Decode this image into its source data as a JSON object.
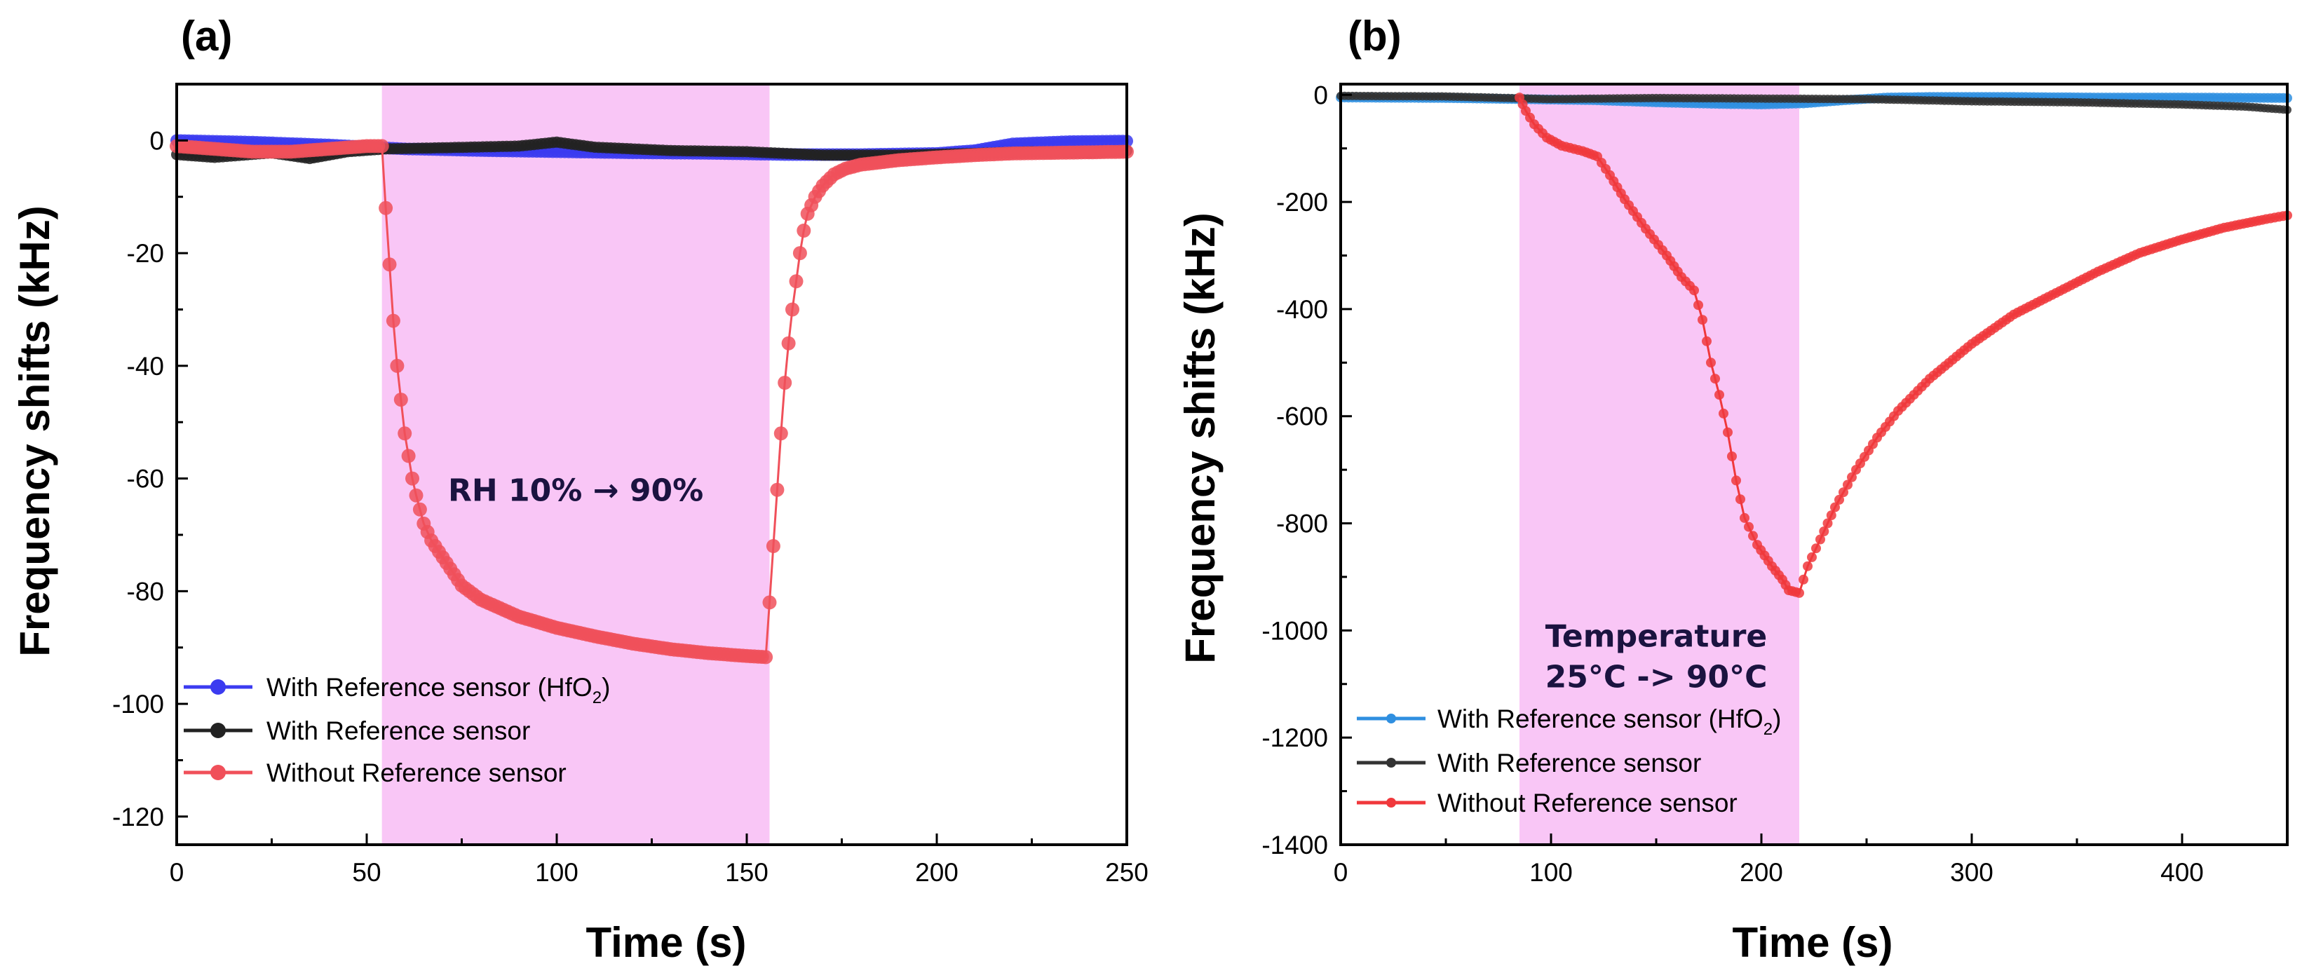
{
  "chart_data": [
    {
      "type": "scatter",
      "panel_label": "(a)",
      "xlabel": "Time (s)",
      "ylabel": "Frequency shifts (kHz)",
      "xlim": [
        0,
        250
      ],
      "ylim": [
        -125,
        10
      ],
      "xticks": [
        0,
        50,
        100,
        150,
        200,
        250
      ],
      "xtick_labels": [
        "0",
        "50",
        "100",
        "150",
        "200",
        "250"
      ],
      "yticks": [
        0,
        -20,
        -40,
        -60,
        -80,
        -100,
        -120
      ],
      "ytick_labels": [
        "0",
        "-20",
        "-40",
        "-60",
        "-80",
        "-100",
        "-120"
      ],
      "highlight_region": {
        "x": [
          54,
          156
        ],
        "color": "#f9c6f6"
      },
      "annotation": {
        "lines": [
          "RH 10% → 90%"
        ],
        "x": 105,
        "y": -64
      },
      "legend_position": "bottom-left",
      "legend_label_main": "With Reference sensor (HfO",
      "legend_label_sub": "2",
      "legend_label_close": ")",
      "series": [
        {
          "name": "With Reference sensor (HfO2)",
          "color": "#3b3bf0",
          "marker_size": 9,
          "points": [
            [
              0,
              0
            ],
            [
              20,
              -0.3
            ],
            [
              40,
              -0.8
            ],
            [
              60,
              -1.5
            ],
            [
              80,
              -1.8
            ],
            [
              100,
              -2
            ],
            [
              120,
              -2.2
            ],
            [
              140,
              -2.3
            ],
            [
              160,
              -2.5
            ],
            [
              180,
              -2.5
            ],
            [
              200,
              -2.3
            ],
            [
              210,
              -1.8
            ],
            [
              220,
              -0.6
            ],
            [
              235,
              -0.2
            ],
            [
              250,
              -0.1
            ]
          ]
        },
        {
          "name": "With Reference sensor",
          "color": "#222222",
          "marker_size": 8,
          "points": [
            [
              0,
              -2.5
            ],
            [
              10,
              -3
            ],
            [
              25,
              -2.2
            ],
            [
              35,
              -3.2
            ],
            [
              45,
              -2
            ],
            [
              55,
              -1.5
            ],
            [
              70,
              -1.3
            ],
            [
              90,
              -1
            ],
            [
              100,
              -0.3
            ],
            [
              110,
              -1.2
            ],
            [
              130,
              -1.8
            ],
            [
              150,
              -2
            ],
            [
              170,
              -2.6
            ],
            [
              190,
              -2.6
            ],
            [
              210,
              -2.3
            ],
            [
              225,
              -2
            ],
            [
              240,
              -2.2
            ],
            [
              250,
              -1.8
            ]
          ]
        },
        {
          "name": "Without Reference sensor",
          "color": "#f0505a",
          "marker_size": 10,
          "points": [
            [
              0,
              -1
            ],
            [
              10,
              -1.5
            ],
            [
              20,
              -2
            ],
            [
              30,
              -2
            ],
            [
              40,
              -1.5
            ],
            [
              50,
              -1
            ],
            [
              54,
              -1
            ],
            [
              55,
              -12
            ],
            [
              56,
              -22
            ],
            [
              57,
              -32
            ],
            [
              58,
              -40
            ],
            [
              59,
              -46
            ],
            [
              60,
              -52
            ],
            [
              61,
              -56
            ],
            [
              62,
              -60
            ],
            [
              63,
              -63
            ],
            [
              64,
              -65.5
            ],
            [
              65,
              -68
            ],
            [
              67,
              -71
            ],
            [
              70,
              -74
            ],
            [
              75,
              -79
            ],
            [
              80,
              -81.5
            ],
            [
              85,
              -83
            ],
            [
              90,
              -84.5
            ],
            [
              95,
              -85.5
            ],
            [
              100,
              -86.5
            ],
            [
              110,
              -88
            ],
            [
              120,
              -89.3
            ],
            [
              130,
              -90.3
            ],
            [
              140,
              -91
            ],
            [
              150,
              -91.5
            ],
            [
              155,
              -91.7
            ],
            [
              156,
              -82
            ],
            [
              157,
              -72
            ],
            [
              158,
              -62
            ],
            [
              159,
              -52
            ],
            [
              160,
              -43
            ],
            [
              161,
              -36
            ],
            [
              162,
              -30
            ],
            [
              163,
              -25
            ],
            [
              164,
              -20
            ],
            [
              165,
              -16
            ],
            [
              166,
              -13
            ],
            [
              168,
              -10
            ],
            [
              170,
              -8
            ],
            [
              173,
              -6
            ],
            [
              176,
              -5
            ],
            [
              180,
              -4.3
            ],
            [
              190,
              -3.5
            ],
            [
              200,
              -3
            ],
            [
              210,
              -2.6
            ],
            [
              220,
              -2.3
            ],
            [
              230,
              -2.2
            ],
            [
              240,
              -2.1
            ],
            [
              250,
              -2
            ]
          ]
        }
      ]
    },
    {
      "type": "scatter",
      "panel_label": "(b)",
      "xlabel": "Time (s)",
      "ylabel": "Frequency shifts (kHz)",
      "xlim": [
        0,
        450
      ],
      "ylim": [
        -1400,
        20
      ],
      "xticks": [
        0,
        100,
        200,
        300,
        400
      ],
      "xtick_labels": [
        "0",
        "100",
        "200",
        "300",
        "400"
      ],
      "yticks": [
        0,
        -200,
        -400,
        -600,
        -800,
        -1000,
        -1200,
        -1400
      ],
      "ytick_labels": [
        "0",
        "-200",
        "-400",
        "-600",
        "-800",
        "-1000",
        "-1200",
        "-1400"
      ],
      "highlight_region": {
        "x": [
          85,
          218
        ],
        "color": "#f9c6f6"
      },
      "annotation": {
        "lines": [
          "Temperature",
          "25°C -> 90°C"
        ],
        "x": 150,
        "y": -1030
      },
      "legend_position": "bottom-left",
      "legend_label_main": "With Reference sensor (HfO",
      "legend_label_sub": "2",
      "legend_label_close": ")",
      "series": [
        {
          "name": "With Reference sensor (HfO2)",
          "color": "#2f8fe0",
          "marker_size": 7,
          "points": [
            [
              0,
              -5
            ],
            [
              50,
              -6
            ],
            [
              85,
              -8
            ],
            [
              120,
              -10
            ],
            [
              150,
              -14
            ],
            [
              180,
              -17
            ],
            [
              200,
              -18
            ],
            [
              220,
              -16
            ],
            [
              240,
              -10
            ],
            [
              260,
              -5
            ],
            [
              280,
              -4
            ],
            [
              320,
              -4
            ],
            [
              360,
              -5
            ],
            [
              400,
              -5
            ],
            [
              450,
              -6
            ]
          ]
        },
        {
          "name": "With Reference sensor",
          "color": "#333333",
          "marker_size": 6,
          "points": [
            [
              0,
              -2
            ],
            [
              50,
              -3
            ],
            [
              100,
              -8
            ],
            [
              150,
              -6
            ],
            [
              200,
              -7
            ],
            [
              250,
              -8
            ],
            [
              300,
              -12
            ],
            [
              350,
              -14
            ],
            [
              400,
              -18
            ],
            [
              430,
              -22
            ],
            [
              450,
              -28
            ]
          ]
        },
        {
          "name": "Without Reference sensor",
          "color": "#f0383c",
          "marker_size": 7,
          "points": [
            [
              85,
              -5
            ],
            [
              88,
              -30
            ],
            [
              92,
              -55
            ],
            [
              98,
              -80
            ],
            [
              105,
              -95
            ],
            [
              115,
              -105
            ],
            [
              122,
              -115
            ],
            [
              128,
              -150
            ],
            [
              135,
              -195
            ],
            [
              145,
              -250
            ],
            [
              155,
              -300
            ],
            [
              162,
              -340
            ],
            [
              168,
              -365
            ],
            [
              172,
              -420
            ],
            [
              176,
              -500
            ],
            [
              180,
              -560
            ],
            [
              184,
              -630
            ],
            [
              188,
              -720
            ],
            [
              192,
              -790
            ],
            [
              198,
              -840
            ],
            [
              205,
              -880
            ],
            [
              210,
              -905
            ],
            [
              213,
              -925
            ],
            [
              218,
              -930
            ],
            [
              222,
              -880
            ],
            [
              228,
              -830
            ],
            [
              235,
              -770
            ],
            [
              245,
              -700
            ],
            [
              255,
              -640
            ],
            [
              265,
              -590
            ],
            [
              280,
              -530
            ],
            [
              300,
              -465
            ],
            [
              320,
              -410
            ],
            [
              340,
              -370
            ],
            [
              360,
              -330
            ],
            [
              380,
              -295
            ],
            [
              400,
              -270
            ],
            [
              420,
              -248
            ],
            [
              440,
              -232
            ],
            [
              450,
              -225
            ]
          ]
        }
      ]
    }
  ]
}
